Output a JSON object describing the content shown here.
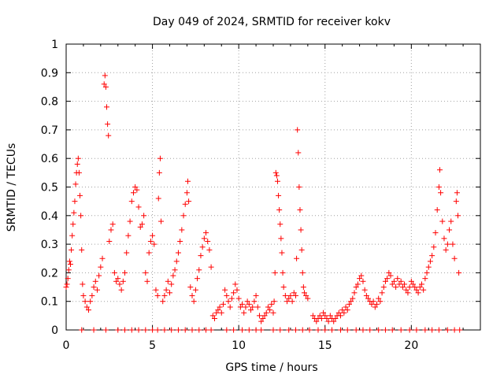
{
  "chart_data": {
    "type": "scatter",
    "title": "Day 049 of 2024, SRMTID for receiver kokv",
    "xlabel": "GPS time / hours",
    "ylabel": "SRMTID / TECUs",
    "xlim": [
      0,
      24
    ],
    "ylim": [
      0,
      1
    ],
    "xticks": [
      0,
      5,
      10,
      15,
      20
    ],
    "xtick_labels": [
      "0",
      "5",
      "10",
      "15",
      "20"
    ],
    "yticks": [
      0,
      0.1,
      0.2,
      0.3,
      0.4,
      0.5,
      0.6,
      0.7,
      0.8,
      0.9,
      1
    ],
    "ytick_labels": [
      "0",
      "0.1",
      "0.2",
      "0.3",
      "0.4",
      "0.5",
      "0.6",
      "0.7",
      "0.8",
      "0.9",
      "1"
    ],
    "grid": true,
    "marker": "+",
    "color": "#ff0000",
    "series": [
      {
        "name": "SRMTID",
        "points": [
          [
            0.0,
            0.15
          ],
          [
            0.05,
            0.16
          ],
          [
            0.1,
            0.18
          ],
          [
            0.15,
            0.21
          ],
          [
            0.2,
            0.24
          ],
          [
            0.25,
            0.23
          ],
          [
            0.3,
            0.28
          ],
          [
            0.35,
            0.33
          ],
          [
            0.4,
            0.37
          ],
          [
            0.45,
            0.41
          ],
          [
            0.5,
            0.45
          ],
          [
            0.55,
            0.51
          ],
          [
            0.6,
            0.55
          ],
          [
            0.65,
            0.58
          ],
          [
            0.7,
            0.6
          ],
          [
            0.75,
            0.55
          ],
          [
            0.8,
            0.47
          ],
          [
            0.85,
            0.4
          ],
          [
            0.9,
            0.28
          ],
          [
            0.95,
            0.16
          ],
          [
            1.0,
            0.12
          ],
          [
            1.1,
            0.1
          ],
          [
            1.2,
            0.08
          ],
          [
            1.3,
            0.07
          ],
          [
            1.4,
            0.1
          ],
          [
            1.5,
            0.12
          ],
          [
            1.6,
            0.15
          ],
          [
            1.7,
            0.17
          ],
          [
            1.8,
            0.14
          ],
          [
            1.9,
            0.19
          ],
          [
            2.0,
            0.22
          ],
          [
            2.1,
            0.25
          ],
          [
            2.2,
            0.86
          ],
          [
            2.25,
            0.89
          ],
          [
            2.3,
            0.85
          ],
          [
            2.35,
            0.78
          ],
          [
            2.4,
            0.72
          ],
          [
            2.45,
            0.68
          ],
          [
            2.5,
            0.31
          ],
          [
            2.6,
            0.35
          ],
          [
            2.7,
            0.37
          ],
          [
            2.8,
            0.2
          ],
          [
            2.9,
            0.17
          ],
          [
            3.0,
            0.18
          ],
          [
            3.1,
            0.16
          ],
          [
            3.2,
            0.14
          ],
          [
            3.3,
            0.17
          ],
          [
            3.4,
            0.2
          ],
          [
            3.5,
            0.27
          ],
          [
            3.6,
            0.33
          ],
          [
            3.7,
            0.38
          ],
          [
            3.8,
            0.45
          ],
          [
            3.9,
            0.48
          ],
          [
            4.0,
            0.5
          ],
          [
            4.1,
            0.49
          ],
          [
            4.2,
            0.43
          ],
          [
            4.3,
            0.36
          ],
          [
            4.4,
            0.37
          ],
          [
            4.5,
            0.4
          ],
          [
            4.6,
            0.2
          ],
          [
            4.7,
            0.17
          ],
          [
            4.8,
            0.27
          ],
          [
            4.9,
            0.31
          ],
          [
            5.0,
            0.33
          ],
          [
            5.1,
            0.3
          ],
          [
            5.2,
            0.14
          ],
          [
            5.3,
            0.12
          ],
          [
            5.35,
            0.46
          ],
          [
            5.4,
            0.55
          ],
          [
            5.45,
            0.6
          ],
          [
            5.5,
            0.38
          ],
          [
            5.6,
            0.1
          ],
          [
            5.7,
            0.12
          ],
          [
            5.8,
            0.14
          ],
          [
            5.9,
            0.17
          ],
          [
            6.0,
            0.13
          ],
          [
            6.1,
            0.16
          ],
          [
            6.2,
            0.19
          ],
          [
            6.3,
            0.21
          ],
          [
            6.4,
            0.24
          ],
          [
            6.5,
            0.27
          ],
          [
            6.6,
            0.31
          ],
          [
            6.7,
            0.35
          ],
          [
            6.8,
            0.4
          ],
          [
            6.9,
            0.44
          ],
          [
            7.0,
            0.48
          ],
          [
            7.05,
            0.52
          ],
          [
            7.1,
            0.45
          ],
          [
            7.2,
            0.15
          ],
          [
            7.3,
            0.12
          ],
          [
            7.4,
            0.1
          ],
          [
            7.5,
            0.14
          ],
          [
            7.6,
            0.18
          ],
          [
            7.7,
            0.21
          ],
          [
            7.8,
            0.26
          ],
          [
            7.9,
            0.29
          ],
          [
            8.0,
            0.32
          ],
          [
            8.1,
            0.34
          ],
          [
            8.2,
            0.31
          ],
          [
            8.3,
            0.28
          ],
          [
            8.4,
            0.22
          ],
          [
            8.5,
            0.05
          ],
          [
            8.6,
            0.04
          ],
          [
            8.7,
            0.06
          ],
          [
            8.8,
            0.07
          ],
          [
            8.9,
            0.08
          ],
          [
            9.0,
            0.06
          ],
          [
            9.1,
            0.09
          ],
          [
            9.2,
            0.14
          ],
          [
            9.3,
            0.12
          ],
          [
            9.4,
            0.1
          ],
          [
            9.5,
            0.08
          ],
          [
            9.6,
            0.11
          ],
          [
            9.7,
            0.13
          ],
          [
            9.8,
            0.16
          ],
          [
            9.9,
            0.14
          ],
          [
            10.0,
            0.11
          ],
          [
            10.1,
            0.08
          ],
          [
            10.2,
            0.09
          ],
          [
            10.3,
            0.06
          ],
          [
            10.4,
            0.08
          ],
          [
            10.5,
            0.1
          ],
          [
            10.6,
            0.09
          ],
          [
            10.7,
            0.07
          ],
          [
            10.8,
            0.08
          ],
          [
            10.9,
            0.1
          ],
          [
            11.0,
            0.12
          ],
          [
            11.1,
            0.08
          ],
          [
            11.2,
            0.05
          ],
          [
            11.3,
            0.03
          ],
          [
            11.4,
            0.04
          ],
          [
            11.5,
            0.05
          ],
          [
            11.6,
            0.06
          ],
          [
            11.7,
            0.08
          ],
          [
            11.8,
            0.07
          ],
          [
            11.9,
            0.09
          ],
          [
            12.0,
            0.06
          ],
          [
            12.05,
            0.1
          ],
          [
            12.1,
            0.2
          ],
          [
            12.15,
            0.55
          ],
          [
            12.2,
            0.54
          ],
          [
            12.25,
            0.52
          ],
          [
            12.3,
            0.47
          ],
          [
            12.35,
            0.42
          ],
          [
            12.4,
            0.37
          ],
          [
            12.45,
            0.32
          ],
          [
            12.5,
            0.27
          ],
          [
            12.55,
            0.2
          ],
          [
            12.6,
            0.15
          ],
          [
            12.7,
            0.12
          ],
          [
            12.8,
            0.1
          ],
          [
            12.9,
            0.11
          ],
          [
            13.0,
            0.12
          ],
          [
            13.1,
            0.1
          ],
          [
            13.2,
            0.13
          ],
          [
            13.3,
            0.12
          ],
          [
            13.35,
            0.25
          ],
          [
            13.4,
            0.7
          ],
          [
            13.45,
            0.62
          ],
          [
            13.5,
            0.5
          ],
          [
            13.55,
            0.42
          ],
          [
            13.6,
            0.35
          ],
          [
            13.65,
            0.28
          ],
          [
            13.7,
            0.2
          ],
          [
            13.75,
            0.15
          ],
          [
            13.8,
            0.13
          ],
          [
            13.9,
            0.12
          ],
          [
            14.0,
            0.11
          ],
          [
            14.3,
            0.05
          ],
          [
            14.4,
            0.04
          ],
          [
            14.5,
            0.03
          ],
          [
            14.6,
            0.04
          ],
          [
            14.7,
            0.05
          ],
          [
            14.8,
            0.04
          ],
          [
            14.9,
            0.06
          ],
          [
            15.0,
            0.05
          ],
          [
            15.1,
            0.04
          ],
          [
            15.2,
            0.03
          ],
          [
            15.3,
            0.05
          ],
          [
            15.4,
            0.04
          ],
          [
            15.5,
            0.03
          ],
          [
            15.6,
            0.04
          ],
          [
            15.7,
            0.05
          ],
          [
            15.8,
            0.06
          ],
          [
            15.9,
            0.05
          ],
          [
            16.0,
            0.07
          ],
          [
            16.1,
            0.06
          ],
          [
            16.2,
            0.08
          ],
          [
            16.3,
            0.07
          ],
          [
            16.4,
            0.09
          ],
          [
            16.5,
            0.1
          ],
          [
            16.6,
            0.11
          ],
          [
            16.7,
            0.13
          ],
          [
            16.8,
            0.15
          ],
          [
            16.9,
            0.16
          ],
          [
            17.0,
            0.18
          ],
          [
            17.1,
            0.19
          ],
          [
            17.2,
            0.17
          ],
          [
            17.3,
            0.14
          ],
          [
            17.4,
            0.12
          ],
          [
            17.5,
            0.11
          ],
          [
            17.6,
            0.1
          ],
          [
            17.7,
            0.09
          ],
          [
            17.8,
            0.1
          ],
          [
            17.9,
            0.08
          ],
          [
            18.0,
            0.09
          ],
          [
            18.1,
            0.11
          ],
          [
            18.2,
            0.1
          ],
          [
            18.3,
            0.13
          ],
          [
            18.4,
            0.15
          ],
          [
            18.5,
            0.17
          ],
          [
            18.6,
            0.18
          ],
          [
            18.7,
            0.2
          ],
          [
            18.8,
            0.19
          ],
          [
            18.9,
            0.16
          ],
          [
            19.0,
            0.17
          ],
          [
            19.1,
            0.15
          ],
          [
            19.2,
            0.18
          ],
          [
            19.3,
            0.16
          ],
          [
            19.4,
            0.17
          ],
          [
            19.5,
            0.15
          ],
          [
            19.6,
            0.16
          ],
          [
            19.7,
            0.14
          ],
          [
            19.8,
            0.13
          ],
          [
            19.9,
            0.15
          ],
          [
            20.0,
            0.17
          ],
          [
            20.1,
            0.16
          ],
          [
            20.2,
            0.15
          ],
          [
            20.3,
            0.14
          ],
          [
            20.4,
            0.13
          ],
          [
            20.5,
            0.15
          ],
          [
            20.6,
            0.16
          ],
          [
            20.7,
            0.14
          ],
          [
            20.8,
            0.18
          ],
          [
            20.9,
            0.2
          ],
          [
            21.0,
            0.22
          ],
          [
            21.1,
            0.24
          ],
          [
            21.2,
            0.26
          ],
          [
            21.3,
            0.29
          ],
          [
            21.4,
            0.34
          ],
          [
            21.5,
            0.42
          ],
          [
            21.6,
            0.5
          ],
          [
            21.65,
            0.56
          ],
          [
            21.7,
            0.48
          ],
          [
            21.8,
            0.38
          ],
          [
            21.9,
            0.32
          ],
          [
            22.0,
            0.28
          ],
          [
            22.1,
            0.3
          ],
          [
            22.2,
            0.35
          ],
          [
            22.3,
            0.38
          ],
          [
            22.4,
            0.3
          ],
          [
            22.5,
            0.25
          ],
          [
            22.6,
            0.45
          ],
          [
            22.65,
            0.48
          ],
          [
            22.7,
            0.4
          ],
          [
            22.75,
            0.2
          ]
        ]
      }
    ],
    "zero_markers_x": [
      0.9,
      1.6,
      2.3,
      3.0,
      3.4,
      3.8,
      4.2,
      4.6,
      5.0,
      5.3,
      5.7,
      6.1,
      6.5,
      6.9,
      7.3,
      7.7,
      8.1,
      8.4,
      9.3,
      9.7,
      10.2,
      10.6,
      11.0,
      11.3,
      12.0,
      12.4,
      12.9,
      13.3,
      13.7,
      14.1,
      14.6,
      15.0,
      15.4,
      15.9,
      16.3,
      16.8,
      17.2,
      17.6,
      18.1,
      18.5,
      18.9,
      19.4,
      19.9,
      20.3,
      20.8,
      21.2,
      21.6,
      22.1,
      22.5,
      22.8
    ]
  }
}
